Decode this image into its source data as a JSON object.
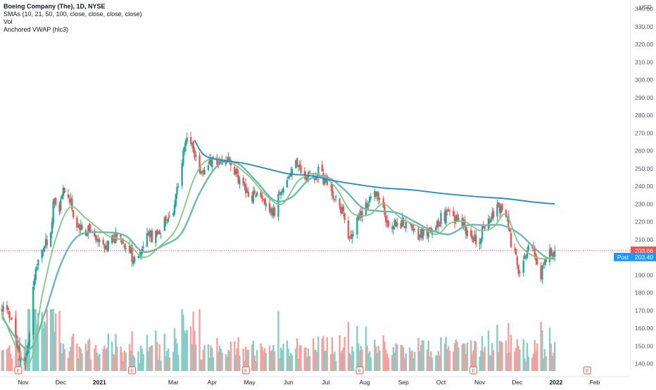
{
  "legend": {
    "title": "Boeing Company (The), 1D, NYSE",
    "sma": "SMAs (10, 21, 50, 100, close, close, close, close)",
    "vol": "Vol",
    "vwap": "Anchored VWAP (hlc3)"
  },
  "currency_label": "USD",
  "post_label": "Post",
  "earnings_marker": "E",
  "colors": {
    "up": "#26a69a",
    "down": "#ef5350",
    "up_vol": "#86cdc6",
    "down_vol": "#f5a09e",
    "sma_fast": "#81c784",
    "sma_slow": "#6fb7b3",
    "vwap": "#1e88c8",
    "last_price_bg": "#ef5350",
    "post_bg": "#2196f3",
    "axis_text": "#50535e",
    "earnings_border": "#ef5350"
  },
  "chart_data": {
    "type": "candlestick",
    "y_axis": {
      "ticks": [
        "140.00",
        "150.00",
        "160.00",
        "170.00",
        "180.00",
        "190.00",
        "200.00",
        "210.00",
        "220.00",
        "230.00",
        "240.00",
        "250.00",
        "260.00",
        "270.00",
        "280.00",
        "290.00",
        "300.00",
        "310.00",
        "320.00",
        "330.00",
        "340.00"
      ],
      "range": [
        135,
        345
      ]
    },
    "x_axis": {
      "labels": [
        {
          "text": "Nov",
          "date": "2020-11"
        },
        {
          "text": "Dec",
          "date": "2020-12"
        },
        {
          "text": "2021",
          "date": "2021-01",
          "bold": true
        },
        {
          "text": "Mar",
          "date": "2021-03"
        },
        {
          "text": "Apr",
          "date": "2021-04"
        },
        {
          "text": "May",
          "date": "2021-05"
        },
        {
          "text": "Jun",
          "date": "2021-06"
        },
        {
          "text": "Jul",
          "date": "2021-07"
        },
        {
          "text": "Aug",
          "date": "2021-08"
        },
        {
          "text": "Sep",
          "date": "2021-09"
        },
        {
          "text": "Oct",
          "date": "2021-10"
        },
        {
          "text": "Nov",
          "date": "2021-11"
        },
        {
          "text": "Dec",
          "date": "2021-12"
        },
        {
          "text": "2022",
          "date": "2022-01",
          "bold": true
        },
        {
          "text": "Feb",
          "date": "2022-02"
        }
      ]
    },
    "last_price": "203.66",
    "post_price": "203.40",
    "earnings_dates": [
      "2020-10-28",
      "2021-01-27",
      "2021-04-28",
      "2021-07-28",
      "2021-10-27",
      "2022-01-26"
    ],
    "price_path": [
      [
        "2020-10-15",
        172
      ],
      [
        "2020-10-22",
        167
      ],
      [
        "2020-10-29",
        145
      ],
      [
        "2020-11-02",
        141
      ],
      [
        "2020-11-05",
        150
      ],
      [
        "2020-11-10",
        190
      ],
      [
        "2020-11-13",
        196
      ],
      [
        "2020-11-18",
        207
      ],
      [
        "2020-11-23",
        212
      ],
      [
        "2020-11-25",
        233
      ],
      [
        "2020-11-30",
        225
      ],
      [
        "2020-12-03",
        238
      ],
      [
        "2020-12-08",
        234
      ],
      [
        "2020-12-11",
        222
      ],
      [
        "2020-12-16",
        217
      ],
      [
        "2020-12-21",
        215
      ],
      [
        "2020-12-28",
        214
      ],
      [
        "2021-01-05",
        205
      ],
      [
        "2021-01-11",
        210
      ],
      [
        "2021-01-15",
        211
      ],
      [
        "2021-01-20",
        208
      ],
      [
        "2021-01-26",
        203
      ],
      [
        "2021-01-28",
        197
      ],
      [
        "2021-02-03",
        202
      ],
      [
        "2021-02-08",
        210
      ],
      [
        "2021-02-12",
        212
      ],
      [
        "2021-02-18",
        213
      ],
      [
        "2021-02-23",
        222
      ],
      [
        "2021-03-01",
        228
      ],
      [
        "2021-03-05",
        240
      ],
      [
        "2021-03-10",
        262
      ],
      [
        "2021-03-12",
        269
      ],
      [
        "2021-03-16",
        264
      ],
      [
        "2021-03-19",
        255
      ],
      [
        "2021-03-24",
        247
      ],
      [
        "2021-03-29",
        251
      ],
      [
        "2021-04-01",
        255
      ],
      [
        "2021-04-07",
        253
      ],
      [
        "2021-04-12",
        254
      ],
      [
        "2021-04-16",
        252
      ],
      [
        "2021-04-22",
        244
      ],
      [
        "2021-04-27",
        240
      ],
      [
        "2021-05-03",
        235
      ],
      [
        "2021-05-07",
        236
      ],
      [
        "2021-05-12",
        229
      ],
      [
        "2021-05-17",
        228
      ],
      [
        "2021-05-21",
        226
      ],
      [
        "2021-05-26",
        238
      ],
      [
        "2021-06-01",
        246
      ],
      [
        "2021-06-07",
        252
      ],
      [
        "2021-06-11",
        250
      ],
      [
        "2021-06-16",
        245
      ],
      [
        "2021-06-21",
        243
      ],
      [
        "2021-06-25",
        248
      ],
      [
        "2021-07-01",
        242
      ],
      [
        "2021-07-07",
        235
      ],
      [
        "2021-07-12",
        230
      ],
      [
        "2021-07-16",
        222
      ],
      [
        "2021-07-20",
        210
      ],
      [
        "2021-07-23",
        214
      ],
      [
        "2021-07-28",
        222
      ],
      [
        "2021-08-03",
        230
      ],
      [
        "2021-08-09",
        237
      ],
      [
        "2021-08-13",
        234
      ],
      [
        "2021-08-18",
        222
      ],
      [
        "2021-08-23",
        217
      ],
      [
        "2021-08-27",
        219
      ],
      [
        "2021-09-02",
        219
      ],
      [
        "2021-09-09",
        214
      ],
      [
        "2021-09-15",
        213
      ],
      [
        "2021-09-21",
        213
      ],
      [
        "2021-09-27",
        215
      ],
      [
        "2021-10-01",
        222
      ],
      [
        "2021-10-06",
        224
      ],
      [
        "2021-10-12",
        222
      ],
      [
        "2021-10-18",
        220
      ],
      [
        "2021-10-22",
        214
      ],
      [
        "2021-10-27",
        210
      ],
      [
        "2021-11-01",
        210
      ],
      [
        "2021-11-05",
        218
      ],
      [
        "2021-11-10",
        222
      ],
      [
        "2021-11-15",
        231
      ],
      [
        "2021-11-18",
        226
      ],
      [
        "2021-11-23",
        220
      ],
      [
        "2021-11-26",
        208
      ],
      [
        "2021-11-30",
        200
      ],
      [
        "2021-12-02",
        194
      ],
      [
        "2021-12-06",
        195
      ],
      [
        "2021-12-09",
        204
      ],
      [
        "2021-12-14",
        205
      ],
      [
        "2021-12-17",
        197
      ],
      [
        "2021-12-20",
        189
      ],
      [
        "2021-12-23",
        198
      ],
      [
        "2021-12-28",
        202
      ],
      [
        "2021-12-31",
        203.66
      ]
    ],
    "sma_fast_path": [
      [
        "2020-10-15",
        168
      ],
      [
        "2020-11-05",
        140
      ],
      [
        "2020-11-16",
        178
      ],
      [
        "2020-11-26",
        208
      ],
      [
        "2020-12-08",
        228
      ],
      [
        "2020-12-21",
        222
      ],
      [
        "2021-01-08",
        212
      ],
      [
        "2021-01-22",
        209
      ],
      [
        "2021-02-05",
        200
      ],
      [
        "2021-02-18",
        206
      ],
      [
        "2021-03-04",
        217
      ],
      [
        "2021-03-18",
        245
      ],
      [
        "2021-03-29",
        255
      ],
      [
        "2021-04-14",
        254
      ],
      [
        "2021-04-30",
        246
      ],
      [
        "2021-05-14",
        235
      ],
      [
        "2021-05-27",
        230
      ],
      [
        "2021-06-09",
        243
      ],
      [
        "2021-06-23",
        247
      ],
      [
        "2021-07-08",
        240
      ],
      [
        "2021-07-22",
        225
      ],
      [
        "2021-08-05",
        224
      ],
      [
        "2021-08-16",
        230
      ],
      [
        "2021-08-30",
        222
      ],
      [
        "2021-09-14",
        217
      ],
      [
        "2021-09-28",
        213
      ],
      [
        "2021-10-08",
        219
      ],
      [
        "2021-10-20",
        220
      ],
      [
        "2021-11-01",
        215
      ],
      [
        "2021-11-12",
        217
      ],
      [
        "2021-11-22",
        224
      ],
      [
        "2021-12-02",
        208
      ],
      [
        "2021-12-13",
        201
      ],
      [
        "2021-12-22",
        199
      ],
      [
        "2021-12-31",
        200
      ]
    ],
    "sma_slow_path": [
      [
        "2020-10-15",
        166
      ],
      [
        "2020-11-05",
        148
      ],
      [
        "2020-11-18",
        168
      ],
      [
        "2020-12-01",
        196
      ],
      [
        "2020-12-15",
        212
      ],
      [
        "2021-01-05",
        214
      ],
      [
        "2021-01-22",
        212
      ],
      [
        "2021-02-05",
        203
      ],
      [
        "2021-02-22",
        207
      ],
      [
        "2021-03-08",
        214
      ],
      [
        "2021-03-22",
        236
      ],
      [
        "2021-04-06",
        252
      ],
      [
        "2021-04-21",
        253
      ],
      [
        "2021-05-06",
        243
      ],
      [
        "2021-05-21",
        232
      ],
      [
        "2021-06-04",
        234
      ],
      [
        "2021-06-18",
        244
      ],
      [
        "2021-07-02",
        245
      ],
      [
        "2021-07-16",
        238
      ],
      [
        "2021-07-30",
        228
      ],
      [
        "2021-08-13",
        226
      ],
      [
        "2021-08-27",
        225
      ],
      [
        "2021-09-10",
        220
      ],
      [
        "2021-09-24",
        215
      ],
      [
        "2021-10-08",
        213
      ],
      [
        "2021-10-22",
        218
      ],
      [
        "2021-11-05",
        218
      ],
      [
        "2021-11-19",
        218
      ],
      [
        "2021-12-03",
        213
      ],
      [
        "2021-12-15",
        205
      ],
      [
        "2021-12-24",
        200
      ],
      [
        "2021-12-31",
        199
      ]
    ],
    "vwap_path": [
      [
        "2021-03-18",
        266
      ],
      [
        "2021-03-25",
        258
      ],
      [
        "2021-04-05",
        255
      ],
      [
        "2021-04-26",
        253
      ],
      [
        "2021-05-14",
        250
      ],
      [
        "2021-06-01",
        247
      ],
      [
        "2021-06-18",
        246
      ],
      [
        "2021-07-08",
        243
      ],
      [
        "2021-07-26",
        241
      ],
      [
        "2021-08-16",
        239
      ],
      [
        "2021-09-07",
        238
      ],
      [
        "2021-10-01",
        236
      ],
      [
        "2021-11-01",
        234
      ],
      [
        "2021-11-22",
        233
      ],
      [
        "2021-12-15",
        231
      ],
      [
        "2021-12-31",
        230
      ]
    ]
  }
}
